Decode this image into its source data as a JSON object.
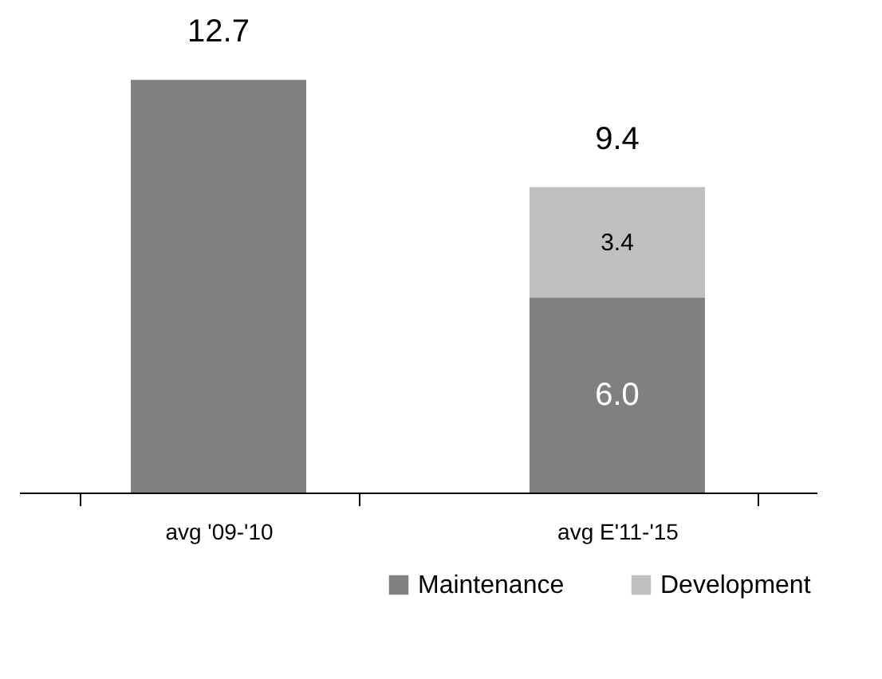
{
  "chart_data": {
    "type": "bar",
    "categories": [
      "avg '09-'10",
      "avg E'11-'15"
    ],
    "stacked": true,
    "series": [
      {
        "name": "Maintenance",
        "color": "#808080",
        "values": [
          12.7,
          6.0
        ],
        "value_labels": [
          null,
          "6.0"
        ]
      },
      {
        "name": "Development",
        "color": "#c0c0c0",
        "values": [
          null,
          3.4
        ],
        "value_labels": [
          null,
          "3.4"
        ]
      }
    ],
    "totals": [
      "12.7",
      "9.4"
    ],
    "legend": "bottom right",
    "grid": false
  }
}
